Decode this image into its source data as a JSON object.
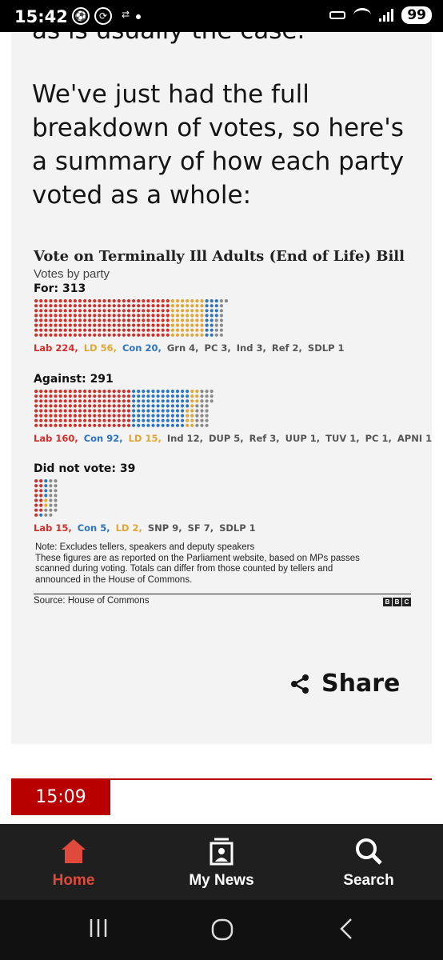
{
  "status": {
    "time": "15:42",
    "battery": "99"
  },
  "article": {
    "cut_line": "as is usually the case.",
    "paragraph": "We've just had the full breakdown of votes, so here's a summary of how each party voted as a whole:"
  },
  "chart_data": {
    "type": "table",
    "title": "Vote on Terminally Ill Adults (End of Life) Bill",
    "subtitle": "Votes by party",
    "colors": {
      "Lab": "#d1302a",
      "Con": "#2e74c0",
      "LD": "#e2a733",
      "Other": "#8a8a8a"
    },
    "groups": [
      {
        "label": "For: 313",
        "parties": [
          {
            "name": "Lab",
            "count": 224,
            "label": "Lab 224,"
          },
          {
            "name": "LD",
            "count": 56,
            "label": "LD 56,"
          },
          {
            "name": "Con",
            "count": 20,
            "label": "Con 20,"
          },
          {
            "name": "Grn",
            "count": 4,
            "label": "Grn 4,"
          },
          {
            "name": "PC",
            "count": 3,
            "label": "PC 3,"
          },
          {
            "name": "Ind",
            "count": 3,
            "label": "Ind 3,"
          },
          {
            "name": "Ref",
            "count": 2,
            "label": "Ref 2,"
          },
          {
            "name": "SDLP",
            "count": 1,
            "label": "SDLP 1"
          }
        ]
      },
      {
        "label": "Against: 291",
        "parties": [
          {
            "name": "Lab",
            "count": 160,
            "label": "Lab 160,"
          },
          {
            "name": "Con",
            "count": 92,
            "label": "Con 92,"
          },
          {
            "name": "LD",
            "count": 15,
            "label": "LD 15,"
          },
          {
            "name": "Ind",
            "count": 12,
            "label": "Ind 12,"
          },
          {
            "name": "DUP",
            "count": 5,
            "label": "DUP 5,"
          },
          {
            "name": "Ref",
            "count": 3,
            "label": "Ref 3,"
          },
          {
            "name": "UUP",
            "count": 1,
            "label": "UUP 1,"
          },
          {
            "name": "TUV",
            "count": 1,
            "label": "TUV 1,"
          },
          {
            "name": "PC",
            "count": 1,
            "label": "PC 1,"
          },
          {
            "name": "APNI",
            "count": 1,
            "label": "APNI 1"
          }
        ]
      },
      {
        "label": "Did not vote: 39",
        "parties": [
          {
            "name": "Lab",
            "count": 15,
            "label": "Lab 15,"
          },
          {
            "name": "Con",
            "count": 5,
            "label": "Con 5,"
          },
          {
            "name": "LD",
            "count": 2,
            "label": "LD 2,"
          },
          {
            "name": "SNP",
            "count": 9,
            "label": "SNP 9,"
          },
          {
            "name": "SF",
            "count": 7,
            "label": "SF 7,"
          },
          {
            "name": "SDLP",
            "count": 1,
            "label": "SDLP 1"
          }
        ]
      }
    ],
    "note_lines": [
      "Note: Excludes tellers, speakers and deputy speakers",
      "These figures are as reported on the Parliament website, based on MPs passes",
      "scanned during voting. Totals can differ from those counted by tellers and",
      "announced in the House of Commons."
    ],
    "source": "Source: House of Commons",
    "logo": [
      "B",
      "B",
      "C"
    ]
  },
  "share": {
    "label": "Share"
  },
  "entry": {
    "time": "15:09"
  },
  "nav": {
    "home": "Home",
    "mynews": "My News",
    "search": "Search"
  }
}
